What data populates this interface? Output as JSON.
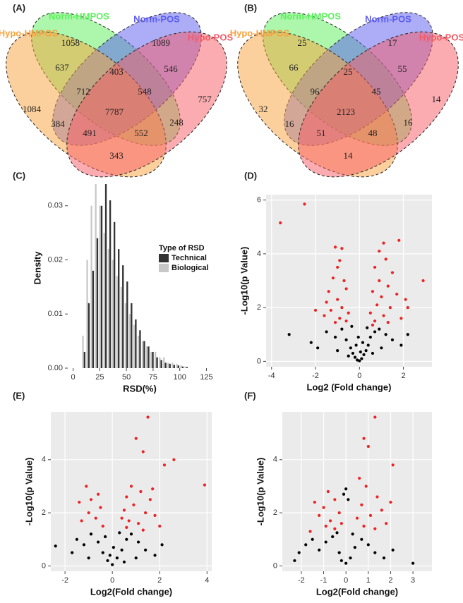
{
  "chart_data": [
    {
      "type": "venn",
      "label": "(A)",
      "series": [
        {
          "name": "Norm-HMPOS",
          "color": "#5cf05c"
        },
        {
          "name": "Norm-POS",
          "color": "#5c5cf0"
        },
        {
          "name": "Hypo-HMPOS",
          "color": "#f9a13a"
        },
        {
          "name": "Hypo-POS",
          "color": "#f55a64"
        }
      ],
      "values": [
        1058,
        1089,
        1084,
        757,
        637,
        403,
        546,
        712,
        548,
        7787,
        384,
        491,
        552,
        248,
        343
      ]
    },
    {
      "type": "venn",
      "label": "(B)",
      "series": [
        {
          "name": "Norm-HMPOS",
          "color": "#5cf05c"
        },
        {
          "name": "Norm-POS",
          "color": "#5c5cf0"
        },
        {
          "name": "Hypo-HMPOS",
          "color": "#f9a13a"
        },
        {
          "name": "Hypo-POS",
          "color": "#f55a64"
        }
      ],
      "values": [
        25,
        17,
        32,
        14,
        66,
        25,
        55,
        96,
        45,
        2123,
        16,
        51,
        48,
        16,
        14
      ]
    },
    {
      "type": "histogram",
      "label": "(C)",
      "xlabel": "RSD(%)",
      "ylabel": "Density",
      "legend_title": "Type of RSD",
      "bins": [
        8,
        12,
        16,
        20,
        24,
        28,
        32,
        36,
        40,
        44,
        48,
        52,
        56,
        60,
        64,
        68,
        72,
        76,
        80,
        84,
        88,
        92,
        96,
        100,
        104,
        108
      ],
      "series": [
        {
          "name": "Technical",
          "color": "#333333",
          "values": [
            0.003,
            0.012,
            0.018,
            0.024,
            0.03,
            0.034,
            0.031,
            0.027,
            0.022,
            0.019,
            0.016,
            0.012,
            0.009,
            0.007,
            0.005,
            0.004,
            0.003,
            0.002,
            0.0015,
            0.001,
            0.0008,
            0.0006,
            0.0005,
            0.0003,
            0.0002
          ]
        },
        {
          "name": "Biological",
          "color": "#c8c8c8",
          "values": [
            0.006,
            0.02,
            0.03,
            0.034,
            0.03,
            0.025,
            0.022,
            0.02,
            0.017,
            0.015,
            0.012,
            0.01,
            0.008,
            0.006,
            0.005,
            0.004,
            0.003,
            0.003,
            0.002,
            0.002,
            0.001,
            0.001,
            0.0008,
            0.0005,
            0.0003
          ]
        }
      ],
      "xlim": [
        -5,
        130
      ],
      "xticks": [
        0,
        25,
        50,
        75,
        100,
        125
      ],
      "ylim": [
        0,
        0.037
      ],
      "yticks": [
        {
          "value": 0,
          "label": "0.00"
        },
        0.01,
        0.02,
        0.03
      ],
      "grid": false
    },
    {
      "type": "scatter",
      "label": "(D)",
      "xlabel": "Log2 (Fold change)",
      "ylabel": "-Log10(p Value)",
      "xlim": [
        -4.25,
        3.3
      ],
      "xticks": [
        -4,
        -2,
        0,
        2
      ],
      "ylim": [
        -0.2,
        6.2
      ],
      "yticks": [
        0,
        2,
        4,
        6
      ],
      "grid": true,
      "series": [
        {
          "color": "#000000",
          "x": [
            -3.2,
            2.2,
            -1.5,
            -1.1,
            -0.8,
            -0.6,
            -0.4,
            -0.3,
            -0.2,
            -0.1,
            0,
            0.1,
            0.2,
            0.3,
            0.4,
            0.5,
            0.7,
            0.9,
            1.2,
            1.5,
            1.9,
            -1.9,
            -2.2,
            -0.5,
            0.6,
            -0.15,
            0.15,
            0.05,
            -0.05,
            0.35,
            -0.35,
            1.0,
            -1.0
          ],
          "values": [
            1.0,
            1.0,
            1.1,
            0.9,
            1.2,
            0.8,
            0.5,
            0.3,
            0.15,
            0.05,
            0.02,
            0.1,
            0.25,
            0.4,
            0.6,
            0.9,
            1.1,
            1.2,
            1.0,
            0.8,
            0.6,
            0.5,
            0.7,
            0.2,
            0.3,
            0.6,
            0.7,
            0.35,
            0.9,
            1.25,
            1.3,
            0.5,
            0.4
          ]
        },
        {
          "color": "#ee2222",
          "x": [
            -3.6,
            -2.5,
            -1.1,
            -0.8,
            -0.9,
            -1.0,
            -1.2,
            -0.7,
            -1.4,
            -0.6,
            -1.5,
            -1.0,
            -0.8,
            -1.3,
            -0.5,
            -1.6,
            -0.9,
            -0.6,
            -2.0,
            -1.1,
            1.1,
            1.8,
            0.9,
            1.2,
            0.7,
            1.5,
            0.9,
            2.9,
            1.3,
            0.6,
            1.7,
            1.0,
            2.1,
            0.8,
            1.4,
            2.2,
            0.5,
            1.1,
            1.9,
            0.7,
            1.3,
            0.6
          ],
          "values": [
            5.15,
            5.85,
            4.25,
            4.2,
            3.75,
            3.5,
            3.1,
            3.0,
            2.6,
            2.7,
            2.2,
            2.3,
            2.0,
            1.9,
            1.8,
            1.7,
            1.6,
            1.5,
            1.9,
            1.45,
            4.4,
            4.5,
            4.1,
            3.8,
            3.5,
            3.3,
            3.0,
            3.0,
            2.8,
            2.6,
            2.5,
            2.4,
            2.3,
            2.1,
            2.0,
            2.0,
            1.8,
            1.7,
            1.6,
            1.5,
            1.45,
            1.35
          ]
        }
      ]
    },
    {
      "type": "scatter",
      "label": "(E)",
      "xlabel": "Log2(Fold change)",
      "ylabel": "-Log10(p Value)",
      "xlim": [
        -2.6,
        4.2
      ],
      "xticks": [
        -2,
        0,
        2,
        4
      ],
      "ylim": [
        -0.2,
        5.8
      ],
      "yticks": [
        0,
        2,
        4
      ],
      "grid": true,
      "series": [
        {
          "color": "#000000",
          "x": [
            -2.4,
            -1.7,
            -1.5,
            -1.2,
            -0.9,
            -0.6,
            -0.4,
            -0.2,
            0,
            0.2,
            0.4,
            0.6,
            0.8,
            1.1,
            1.4,
            1.8,
            2.1,
            -0.3,
            0.3,
            0.05,
            -0.1,
            1.0,
            -1.0,
            0.5
          ],
          "values": [
            0.75,
            0.5,
            1.0,
            0.8,
            1.2,
            0.9,
            0.5,
            0.2,
            0.05,
            0.3,
            0.6,
            1.0,
            1.2,
            0.9,
            0.6,
            0.4,
            0.8,
            1.1,
            1.25,
            0.7,
            0.4,
            0.3,
            0.3,
            0.15
          ]
        },
        {
          "color": "#ee2222",
          "x": [
            1.5,
            1.0,
            1.3,
            2.6,
            2.2,
            3.9,
            -1.1,
            -0.6,
            -0.9,
            -1.4,
            -0.5,
            -1.0,
            -0.7,
            -1.3,
            -0.4,
            0.8,
            1.2,
            0.6,
            1.6,
            0.9,
            0.5,
            1.4,
            1.8,
            0.7,
            1.1,
            2.0,
            0.6,
            1.3,
            0.4,
            1.7
          ],
          "values": [
            5.6,
            4.8,
            4.3,
            4.0,
            3.8,
            3.05,
            3.0,
            2.7,
            2.5,
            2.4,
            2.2,
            2.0,
            1.8,
            1.7,
            1.5,
            3.0,
            2.8,
            2.6,
            2.5,
            2.3,
            2.1,
            2.0,
            1.9,
            1.7,
            1.6,
            1.5,
            1.45,
            1.35,
            1.8,
            2.9
          ]
        }
      ]
    },
    {
      "type": "scatter",
      "label": "(F)",
      "xlabel": "Log2(Fold change)",
      "ylabel": "-Log10(p Value)",
      "xlim": [
        -2.85,
        3.85
      ],
      "xticks": [
        -2,
        -1,
        0,
        1,
        2,
        3
      ],
      "ylim": [
        -0.2,
        5.8
      ],
      "yticks": [
        0,
        2,
        4
      ],
      "grid": true,
      "series": [
        {
          "color": "#000000",
          "x": [
            -2.3,
            -2.1,
            -1.8,
            -1.5,
            -1.2,
            -0.9,
            -0.6,
            -0.3,
            0,
            0.2,
            0.4,
            0.7,
            1.0,
            1.3,
            1.7,
            2.1,
            3.0,
            -0.1,
            0.1,
            0.0,
            -0.2,
            0.3,
            -0.4
          ],
          "values": [
            0.2,
            0.5,
            0.8,
            1.0,
            0.6,
            0.9,
            1.1,
            0.5,
            0.1,
            0.3,
            0.7,
            1.0,
            0.8,
            0.5,
            0.3,
            0.6,
            0.1,
            2.7,
            2.5,
            2.9,
            0.2,
            1.2,
            1.25
          ]
        },
        {
          "color": "#ee2222",
          "x": [
            1.3,
            0.8,
            1.0,
            2.1,
            0.6,
            -0.8,
            -1.4,
            -0.5,
            -1.0,
            -0.3,
            -1.2,
            -0.7,
            -0.2,
            -0.9,
            -0.5,
            0.9,
            1.4,
            0.7,
            1.6,
            1.1,
            0.5,
            1.8,
            0.8,
            1.3,
            2.0,
            -1.6
          ],
          "values": [
            5.6,
            4.8,
            4.5,
            3.8,
            3.3,
            2.8,
            2.4,
            2.5,
            2.2,
            2.0,
            1.9,
            1.7,
            1.6,
            1.5,
            1.4,
            3.0,
            2.6,
            2.3,
            2.1,
            1.9,
            1.8,
            1.6,
            1.5,
            1.4,
            2.4,
            1.3
          ]
        }
      ]
    }
  ]
}
